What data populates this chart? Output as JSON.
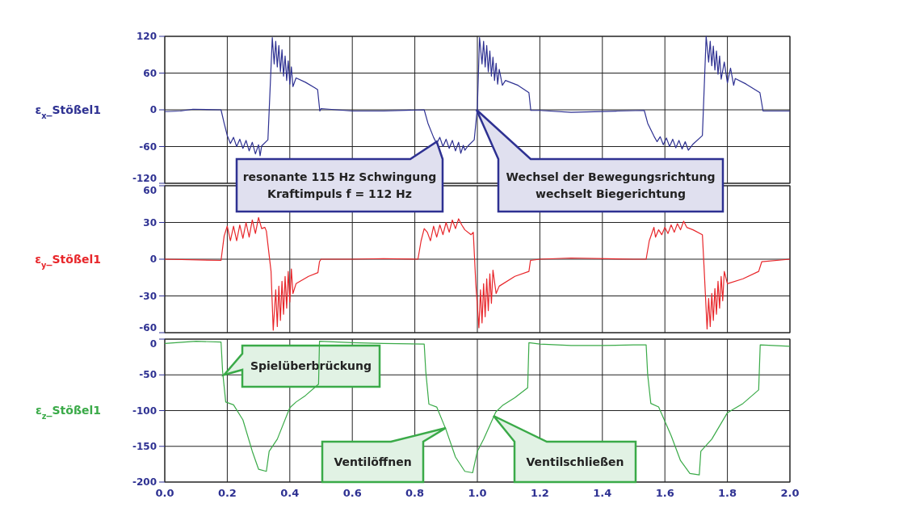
{
  "chart_data": [
    {
      "type": "line",
      "ylabel": "ε$_{x}$_Stößel1",
      "xlim": [
        0,
        2
      ],
      "xticks": [
        0,
        0.2,
        0.4,
        0.6,
        0.8,
        1,
        1.2,
        1.4,
        1.6,
        1.8,
        2
      ],
      "ylim": [
        -120,
        120
      ],
      "yticks": [
        -120,
        -60,
        0,
        60,
        120
      ],
      "grid": true,
      "tick_labels": "y",
      "x": [
        0,
        0.05,
        0.09,
        0.18,
        0.19,
        0.2,
        0.21,
        0.22,
        0.23,
        0.24,
        0.25,
        0.26,
        0.27,
        0.28,
        0.29,
        0.3,
        0.305,
        0.31,
        0.33,
        0.344,
        0.35,
        0.355,
        0.36,
        0.365,
        0.37,
        0.375,
        0.38,
        0.385,
        0.39,
        0.395,
        0.4,
        0.405,
        0.41,
        0.42,
        0.45,
        0.48,
        0.489,
        0.496,
        0.5,
        0.6,
        0.7,
        0.83,
        0.842,
        0.86,
        0.87,
        0.88,
        0.89,
        0.9,
        0.91,
        0.92,
        0.93,
        0.94,
        0.947,
        0.955,
        0.96,
        0.97,
        0.99,
        1.0,
        1.007,
        1.015,
        1.02,
        1.025,
        1.03,
        1.035,
        1.04,
        1.045,
        1.05,
        1.055,
        1.06,
        1.065,
        1.07,
        1.08,
        1.09,
        1.13,
        1.165,
        1.171,
        1.2,
        1.3,
        1.45,
        1.534,
        1.545,
        1.565,
        1.575,
        1.585,
        1.595,
        1.605,
        1.615,
        1.625,
        1.635,
        1.645,
        1.655,
        1.665,
        1.675,
        1.69,
        1.72,
        1.732,
        1.74,
        1.745,
        1.75,
        1.755,
        1.76,
        1.765,
        1.77,
        1.775,
        1.78,
        1.79,
        1.8,
        1.81,
        1.82,
        1.825,
        1.86,
        1.904,
        1.914,
        2.0
      ],
      "series": [
        {
          "color": "#2e3192",
          "values": [
            -3,
            -2,
            1,
            0,
            -22,
            -42,
            -55,
            -45,
            -60,
            -48,
            -63,
            -50,
            -67,
            -53,
            -72,
            -57,
            -75,
            -59,
            -49,
            118,
            75,
            112,
            70,
            105,
            62,
            98,
            55,
            88,
            48,
            80,
            42,
            70,
            38,
            52,
            45,
            36,
            33,
            -2,
            2,
            -2,
            -2,
            0,
            -22,
            -45,
            -55,
            -45,
            -60,
            -48,
            -63,
            -50,
            -67,
            -53,
            -71,
            -58,
            -66,
            -59,
            -49,
            3,
            118,
            75,
            112,
            70,
            105,
            62,
            96,
            55,
            86,
            48,
            76,
            42,
            66,
            40,
            48,
            40,
            28,
            -1,
            -1,
            -4,
            -2,
            -1,
            -22,
            -43,
            -52,
            -44,
            -57,
            -46,
            -60,
            -48,
            -62,
            -50,
            -64,
            -52,
            -66,
            -56,
            -42,
            120,
            78,
            112,
            72,
            104,
            65,
            96,
            58,
            88,
            50,
            78,
            44,
            68,
            40,
            51,
            42,
            28,
            -2,
            -2
          ]
        }
      ],
      "annotations": [
        {
          "text": "resonante 115 Hz Schwingung\nKraftimpuls f = 112 Hz",
          "x": 0.87,
          "y": -52
        },
        "Wechsel der Bewegungsrichtung\nwechselt Biegerichtung"
      ]
    },
    {
      "type": "line",
      "ylabel": "ε$_{y}$_Stößel1",
      "xlim": [
        0,
        2
      ],
      "xticks": [
        0,
        0.2,
        0.4,
        0.6,
        0.8,
        1,
        1.2,
        1.4,
        1.6,
        1.8,
        2
      ],
      "ylim": [
        -60,
        60
      ],
      "yticks": [
        -60,
        -30,
        0,
        30,
        60
      ],
      "grid": true,
      "tick_labels": "y",
      "x": [
        0,
        0.18,
        0.19,
        0.2,
        0.21,
        0.22,
        0.23,
        0.24,
        0.25,
        0.26,
        0.27,
        0.28,
        0.29,
        0.3,
        0.31,
        0.32,
        0.325,
        0.34,
        0.347,
        0.355,
        0.36,
        0.365,
        0.37,
        0.375,
        0.38,
        0.385,
        0.39,
        0.395,
        0.4,
        0.405,
        0.41,
        0.42,
        0.46,
        0.49,
        0.495,
        0.5,
        0.6,
        0.7,
        0.81,
        0.82,
        0.83,
        0.84,
        0.85,
        0.86,
        0.87,
        0.88,
        0.89,
        0.9,
        0.91,
        0.92,
        0.93,
        0.94,
        0.95,
        0.96,
        0.98,
        0.987,
        0.995,
        1.005,
        1.01,
        1.015,
        1.02,
        1.025,
        1.03,
        1.035,
        1.04,
        1.045,
        1.05,
        1.06,
        1.07,
        1.12,
        1.165,
        1.17,
        1.2,
        1.3,
        1.5,
        1.54,
        1.55,
        1.565,
        1.57,
        1.58,
        1.59,
        1.6,
        1.61,
        1.62,
        1.63,
        1.64,
        1.65,
        1.66,
        1.67,
        1.69,
        1.72,
        1.725,
        1.735,
        1.74,
        1.745,
        1.75,
        1.755,
        1.76,
        1.765,
        1.77,
        1.775,
        1.78,
        1.785,
        1.79,
        1.8,
        1.85,
        1.9,
        1.91,
        2.0
      ],
      "series": [
        {
          "color": "#e8262a",
          "values": [
            0,
            -1,
            19,
            27,
            15,
            27,
            15,
            28,
            17,
            30,
            18,
            32,
            21,
            34,
            25,
            26,
            23,
            -10,
            -58,
            -25,
            -55,
            -22,
            -50,
            -18,
            -45,
            -14,
            -40,
            -10,
            -35,
            -8,
            -28,
            -20,
            -14,
            -11,
            -2,
            0,
            0,
            0.5,
            0,
            15,
            25,
            22,
            15,
            27,
            18,
            28,
            20,
            30,
            22,
            32,
            25,
            33,
            28,
            24,
            20,
            22,
            -20,
            -56,
            -25,
            -52,
            -20,
            -47,
            -16,
            -42,
            -12,
            -36,
            -9,
            -28,
            -22,
            -14,
            -10,
            -1,
            0,
            1,
            0,
            0,
            15,
            26,
            18,
            24,
            20,
            26,
            21,
            28,
            22,
            29,
            24,
            31,
            26,
            24,
            20,
            -5,
            -57,
            -32,
            -55,
            -28,
            -50,
            -24,
            -45,
            -18,
            -40,
            -14,
            -34,
            -10,
            -20,
            -16,
            -10,
            -2,
            0
          ]
        }
      ]
    },
    {
      "type": "line",
      "ylabel": "ε$_{z}$_Stößel1",
      "xlim": [
        0,
        2
      ],
      "xticks": [
        {
          "value": 0,
          "label": "0.0"
        },
        {
          "value": 0.2,
          "label": "0.2"
        },
        {
          "value": 0.4,
          "label": "0.4"
        },
        {
          "value": 0.6,
          "label": "0.6"
        },
        {
          "value": 0.8,
          "label": "0.8"
        },
        {
          "value": 1,
          "label": "1.0"
        },
        {
          "value": 1.2,
          "label": "1.2"
        },
        {
          "value": 1.4,
          "label": "1.4"
        },
        {
          "value": 1.6,
          "label": "1.6"
        },
        {
          "value": 1.8,
          "label": "1.8"
        },
        {
          "value": 2,
          "label": "2.0"
        }
      ],
      "ylim": [
        -200,
        0
      ],
      "yticks": [
        -200,
        -150,
        -100,
        -50,
        0
      ],
      "grid": true,
      "x": [
        0,
        0.1,
        0.18,
        0.185,
        0.195,
        0.22,
        0.25,
        0.28,
        0.3,
        0.325,
        0.334,
        0.36,
        0.4,
        0.42,
        0.45,
        0.492,
        0.495,
        0.6,
        0.7,
        0.83,
        0.835,
        0.845,
        0.87,
        0.9,
        0.93,
        0.96,
        0.985,
        1.0,
        1.02,
        1.059,
        1.08,
        1.12,
        1.161,
        1.165,
        1.2,
        1.3,
        1.4,
        1.5,
        1.54,
        1.545,
        1.555,
        1.58,
        1.62,
        1.65,
        1.68,
        1.71,
        1.715,
        1.75,
        1.8,
        1.85,
        1.9,
        1.905,
        2.0
      ],
      "series": [
        {
          "color": "#3aaa48",
          "values": [
            -6,
            -3,
            -4,
            -45,
            -88,
            -92,
            -113,
            -157,
            -182,
            -185,
            -157,
            -140,
            -96,
            -88,
            -79,
            -63,
            -3,
            -5,
            -6,
            -7,
            -45,
            -91,
            -95,
            -127,
            -165,
            -185,
            -187,
            -157,
            -140,
            -102,
            -93,
            -82,
            -68,
            -5,
            -7,
            -9,
            -9,
            -8,
            -8,
            -50,
            -90,
            -95,
            -135,
            -170,
            -188,
            -190,
            -157,
            -140,
            -103,
            -90,
            -71,
            -8,
            -10
          ]
        }
      ],
      "annotations": [
        {
          "text": "Spielüberbrückung",
          "x": 0.19,
          "y": -50
        },
        "Ventilöffnen",
        "Ventilschließen"
      ]
    }
  ]
}
